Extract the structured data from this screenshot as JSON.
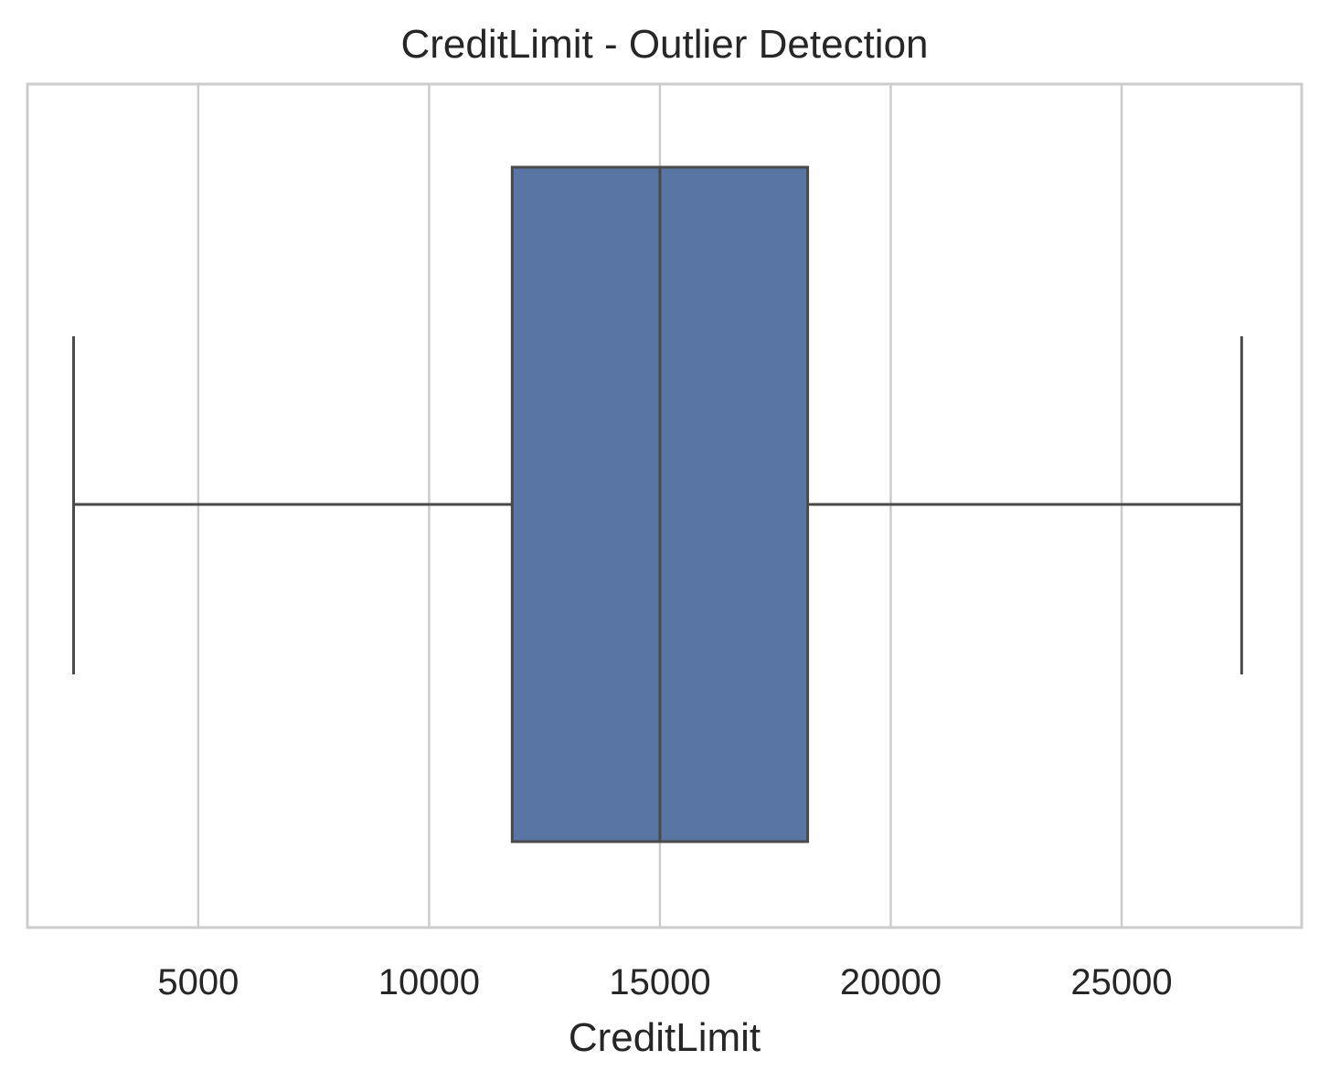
{
  "chart_data": {
    "type": "box",
    "title": "CreditLimit - Outlier Detection",
    "xlabel": "CreditLimit",
    "ylabel": "",
    "xlim": [
      1300,
      28900
    ],
    "xticks": [
      5000,
      10000,
      15000,
      20000,
      25000
    ],
    "xtick_labels": [
      "5000",
      "10000",
      "15000",
      "20000",
      "25000"
    ],
    "grid": true,
    "orientation": "horizontal",
    "box": {
      "whisker_low": 2300,
      "q1": 11800,
      "median": 15000,
      "q3": 18200,
      "whisker_high": 27600
    },
    "box_color": "#5975a4",
    "line_color": "#4a4a4a",
    "grid_color": "#cccccc"
  }
}
